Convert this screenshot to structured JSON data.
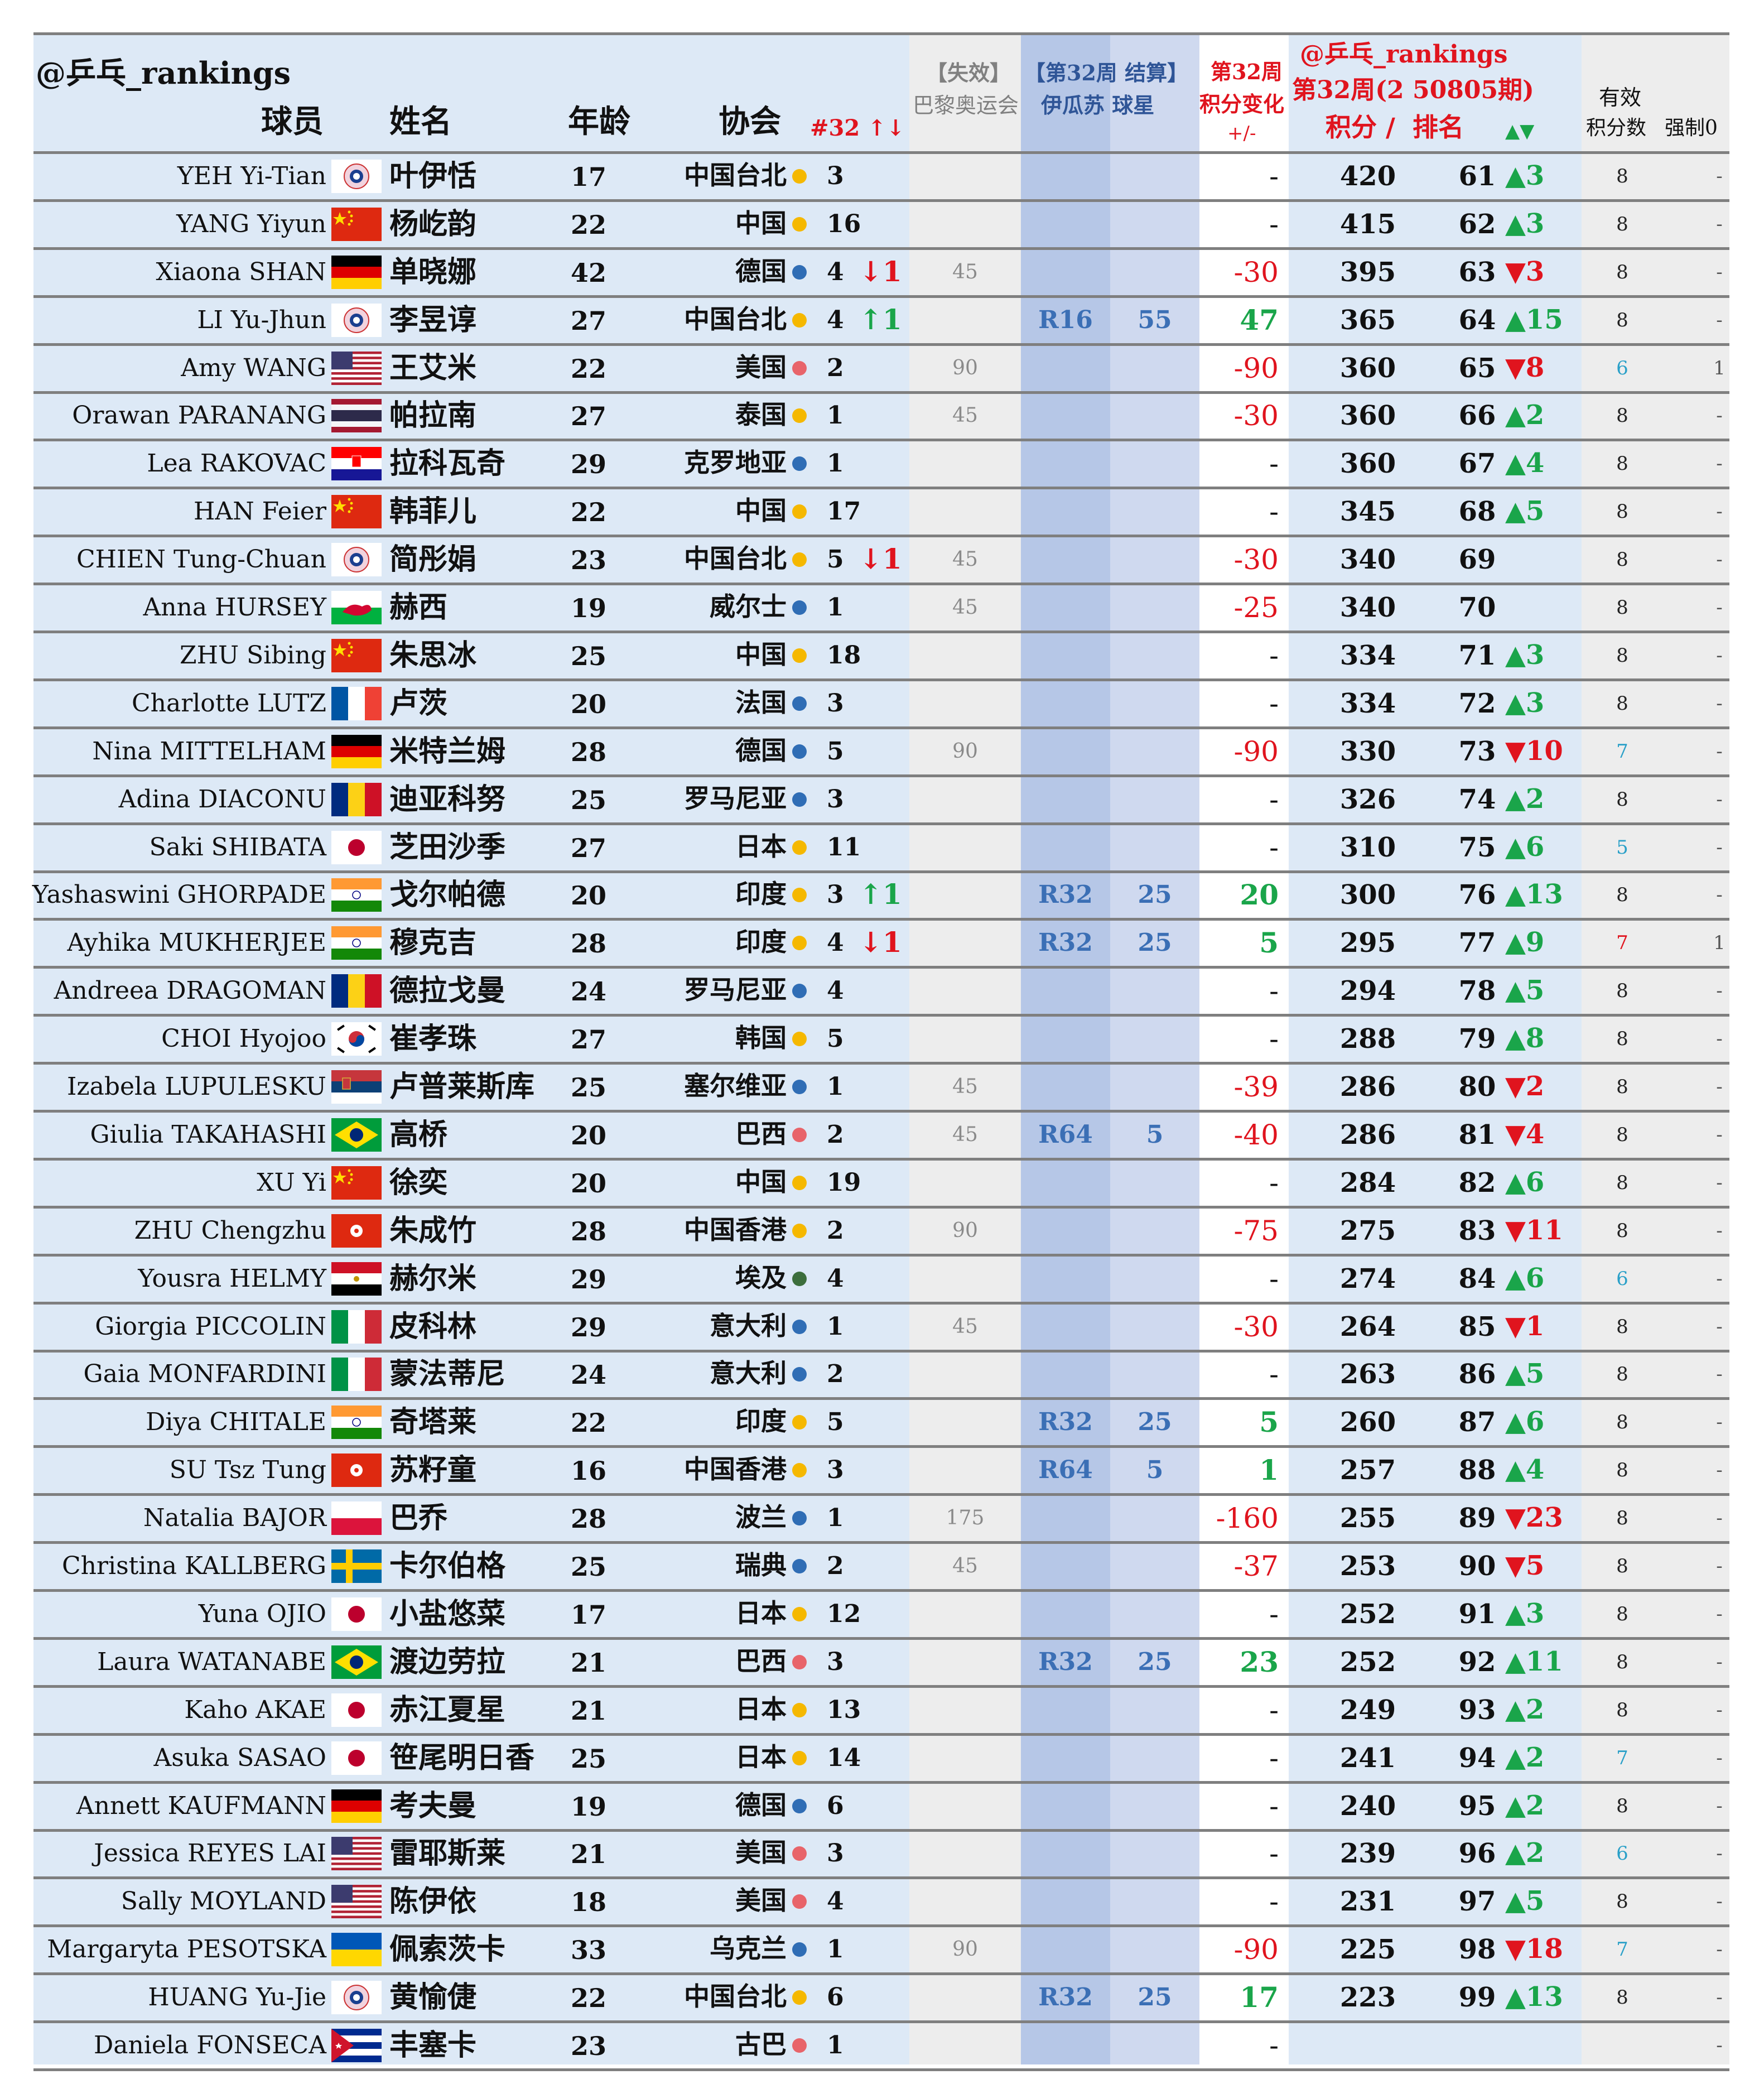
{
  "header": {
    "handle": "@乒乓_rankings",
    "col_player": "球员",
    "col_name": "姓名",
    "col_age": "年龄",
    "col_assoc": "协会",
    "col_week_change": "#32 ↑↓",
    "col_expired_line1": "【失效】",
    "col_expired_line2": "巴黎奥运会",
    "col_settle_line1": "【第32周 结算】",
    "col_settle_line2": "伊瓜苏 球星",
    "col_points_change_line1": "第32周",
    "col_points_change_line2": "积分变化",
    "col_points_change_line3": "+/-",
    "col_rank_line1": "@乒乓_rankings",
    "col_rank_line2": "第32周(2 50805期)",
    "col_points": "积分 /",
    "col_rank": "排名",
    "col_rank_arrows": "▲▼",
    "col_valid_line1": "有效",
    "col_valid_line2": "积分数",
    "col_forced": "强制0"
  },
  "colors": {
    "asia_dot": "#f5b800",
    "europe_dot": "#2f6db5",
    "america_dot": "#e8646a",
    "africa_dot": "#3c6e3c",
    "up": "#1aa54a",
    "down": "#e0141e",
    "rblue": "#3b6fb5",
    "count_blue": "#2aa0c8",
    "count_red": "#e0141e"
  },
  "players": [
    {
      "en": "YEH Yi-Tian",
      "flag": "tpe-flag",
      "cn": "叶伊恬",
      "age": "17",
      "assoc": "中国台北",
      "region": "asia",
      "num": "3",
      "wk": "",
      "wk_dir": "",
      "exp": "",
      "round": "",
      "rpts": "",
      "chg": "-",
      "chg_dir": "",
      "pts": "420",
      "rank": "61",
      "arrow": "▲3",
      "arrow_dir": "up",
      "valid": "8",
      "valid_color": "",
      "forced": "-"
    },
    {
      "en": "YANG Yiyun",
      "flag": "china-flag",
      "cn": "杨屹韵",
      "age": "22",
      "assoc": "中国",
      "region": "asia",
      "num": "16",
      "wk": "",
      "wk_dir": "",
      "exp": "",
      "round": "",
      "rpts": "",
      "chg": "-",
      "chg_dir": "",
      "pts": "415",
      "rank": "62",
      "arrow": "▲3",
      "arrow_dir": "up",
      "valid": "8",
      "valid_color": "",
      "forced": "-"
    },
    {
      "en": "Xiaona SHAN",
      "flag": "germany-flag",
      "cn": "单晓娜",
      "age": "42",
      "assoc": "德国",
      "region": "europe",
      "num": "4",
      "wk": "↓1",
      "wk_dir": "down",
      "exp": "45",
      "round": "",
      "rpts": "",
      "chg": "-30",
      "chg_dir": "down",
      "pts": "395",
      "rank": "63",
      "arrow": "▼3",
      "arrow_dir": "down",
      "valid": "8",
      "valid_color": "",
      "forced": "-"
    },
    {
      "en": "LI Yu-Jhun",
      "flag": "tpe-flag",
      "cn": "李昱谆",
      "age": "27",
      "assoc": "中国台北",
      "region": "asia",
      "num": "4",
      "wk": "↑1",
      "wk_dir": "up",
      "exp": "",
      "round": "R16",
      "rpts": "55",
      "chg": "47",
      "chg_dir": "up",
      "pts": "365",
      "rank": "64",
      "arrow": "▲15",
      "arrow_dir": "up",
      "valid": "8",
      "valid_color": "",
      "forced": "-"
    },
    {
      "en": "Amy WANG",
      "flag": "usa-flag",
      "cn": "王艾米",
      "age": "22",
      "assoc": "美国",
      "region": "america",
      "num": "2",
      "wk": "",
      "wk_dir": "",
      "exp": "90",
      "round": "",
      "rpts": "",
      "chg": "-90",
      "chg_dir": "down",
      "pts": "360",
      "rank": "65",
      "arrow": "▼8",
      "arrow_dir": "down",
      "valid": "6",
      "valid_color": "blue",
      "forced": "1"
    },
    {
      "en": "Orawan PARANANG",
      "flag": "thailand-flag",
      "cn": "帕拉南",
      "age": "27",
      "assoc": "泰国",
      "region": "asia",
      "num": "1",
      "wk": "",
      "wk_dir": "",
      "exp": "45",
      "round": "",
      "rpts": "",
      "chg": "-30",
      "chg_dir": "down",
      "pts": "360",
      "rank": "66",
      "arrow": "▲2",
      "arrow_dir": "up",
      "valid": "8",
      "valid_color": "",
      "forced": "-"
    },
    {
      "en": "Lea RAKOVAC",
      "flag": "croatia-flag",
      "cn": "拉科瓦奇",
      "age": "29",
      "assoc": "克罗地亚",
      "region": "europe",
      "num": "1",
      "wk": "",
      "wk_dir": "",
      "exp": "",
      "round": "",
      "rpts": "",
      "chg": "-",
      "chg_dir": "",
      "pts": "360",
      "rank": "67",
      "arrow": "▲4",
      "arrow_dir": "up",
      "valid": "8",
      "valid_color": "",
      "forced": "-"
    },
    {
      "en": "HAN Feier",
      "flag": "china-flag",
      "cn": "韩菲儿",
      "age": "22",
      "assoc": "中国",
      "region": "asia",
      "num": "17",
      "wk": "",
      "wk_dir": "",
      "exp": "",
      "round": "",
      "rpts": "",
      "chg": "-",
      "chg_dir": "",
      "pts": "345",
      "rank": "68",
      "arrow": "▲5",
      "arrow_dir": "up",
      "valid": "8",
      "valid_color": "",
      "forced": "-"
    },
    {
      "en": "CHIEN Tung-Chuan",
      "flag": "tpe-flag",
      "cn": "简彤娟",
      "age": "23",
      "assoc": "中国台北",
      "region": "asia",
      "num": "5",
      "wk": "↓1",
      "wk_dir": "down",
      "exp": "45",
      "round": "",
      "rpts": "",
      "chg": "-30",
      "chg_dir": "down",
      "pts": "340",
      "rank": "69",
      "arrow": "",
      "arrow_dir": "",
      "valid": "8",
      "valid_color": "",
      "forced": "-"
    },
    {
      "en": "Anna HURSEY",
      "flag": "wales-flag",
      "cn": "赫西",
      "age": "19",
      "assoc": "威尔士",
      "region": "europe",
      "num": "1",
      "wk": "",
      "wk_dir": "",
      "exp": "45",
      "round": "",
      "rpts": "",
      "chg": "-25",
      "chg_dir": "down",
      "pts": "340",
      "rank": "70",
      "arrow": "",
      "arrow_dir": "",
      "valid": "8",
      "valid_color": "",
      "forced": "-"
    },
    {
      "en": "ZHU Sibing",
      "flag": "china-flag",
      "cn": "朱思冰",
      "age": "25",
      "assoc": "中国",
      "region": "asia",
      "num": "18",
      "wk": "",
      "wk_dir": "",
      "exp": "",
      "round": "",
      "rpts": "",
      "chg": "-",
      "chg_dir": "",
      "pts": "334",
      "rank": "71",
      "arrow": "▲3",
      "arrow_dir": "up",
      "valid": "8",
      "valid_color": "",
      "forced": "-"
    },
    {
      "en": "Charlotte LUTZ",
      "flag": "france-flag",
      "cn": "卢茨",
      "age": "20",
      "assoc": "法国",
      "region": "europe",
      "num": "3",
      "wk": "",
      "wk_dir": "",
      "exp": "",
      "round": "",
      "rpts": "",
      "chg": "-",
      "chg_dir": "",
      "pts": "334",
      "rank": "72",
      "arrow": "▲3",
      "arrow_dir": "up",
      "valid": "8",
      "valid_color": "",
      "forced": "-"
    },
    {
      "en": "Nina MITTELHAM",
      "flag": "germany-flag",
      "cn": "米特兰姆",
      "age": "28",
      "assoc": "德国",
      "region": "europe",
      "num": "5",
      "wk": "",
      "wk_dir": "",
      "exp": "90",
      "round": "",
      "rpts": "",
      "chg": "-90",
      "chg_dir": "down",
      "pts": "330",
      "rank": "73",
      "arrow": "▼10",
      "arrow_dir": "down",
      "valid": "7",
      "valid_color": "blue",
      "forced": "-"
    },
    {
      "en": "Adina DIACONU",
      "flag": "romania-flag",
      "cn": "迪亚科努",
      "age": "25",
      "assoc": "罗马尼亚",
      "region": "europe",
      "num": "3",
      "wk": "",
      "wk_dir": "",
      "exp": "",
      "round": "",
      "rpts": "",
      "chg": "-",
      "chg_dir": "",
      "pts": "326",
      "rank": "74",
      "arrow": "▲2",
      "arrow_dir": "up",
      "valid": "8",
      "valid_color": "",
      "forced": "-"
    },
    {
      "en": "Saki SHIBATA",
      "flag": "japan-flag",
      "cn": "芝田沙季",
      "age": "27",
      "assoc": "日本",
      "region": "asia",
      "num": "11",
      "wk": "",
      "wk_dir": "",
      "exp": "",
      "round": "",
      "rpts": "",
      "chg": "-",
      "chg_dir": "",
      "pts": "310",
      "rank": "75",
      "arrow": "▲6",
      "arrow_dir": "up",
      "valid": "5",
      "valid_color": "blue",
      "forced": "-"
    },
    {
      "en": "Yashaswini GHORPADE",
      "flag": "india-flag",
      "cn": "戈尔帕德",
      "age": "20",
      "assoc": "印度",
      "region": "asia",
      "num": "3",
      "wk": "↑1",
      "wk_dir": "up",
      "exp": "",
      "round": "R32",
      "rpts": "25",
      "chg": "20",
      "chg_dir": "up",
      "pts": "300",
      "rank": "76",
      "arrow": "▲13",
      "arrow_dir": "up",
      "valid": "8",
      "valid_color": "",
      "forced": "-"
    },
    {
      "en": "Ayhika MUKHERJEE",
      "flag": "india-flag",
      "cn": "穆克吉",
      "age": "28",
      "assoc": "印度",
      "region": "asia",
      "num": "4",
      "wk": "↓1",
      "wk_dir": "down",
      "exp": "",
      "round": "R32",
      "rpts": "25",
      "chg": "5",
      "chg_dir": "up",
      "pts": "295",
      "rank": "77",
      "arrow": "▲9",
      "arrow_dir": "up",
      "valid": "7",
      "valid_color": "red",
      "forced": "1"
    },
    {
      "en": "Andreea DRAGOMAN",
      "flag": "romania-flag",
      "cn": "德拉戈曼",
      "age": "24",
      "assoc": "罗马尼亚",
      "region": "europe",
      "num": "4",
      "wk": "",
      "wk_dir": "",
      "exp": "",
      "round": "",
      "rpts": "",
      "chg": "-",
      "chg_dir": "",
      "pts": "294",
      "rank": "78",
      "arrow": "▲5",
      "arrow_dir": "up",
      "valid": "8",
      "valid_color": "",
      "forced": "-"
    },
    {
      "en": "CHOI Hyojoo",
      "flag": "korea-flag",
      "cn": "崔孝珠",
      "age": "27",
      "assoc": "韩国",
      "region": "asia",
      "num": "5",
      "wk": "",
      "wk_dir": "",
      "exp": "",
      "round": "",
      "rpts": "",
      "chg": "-",
      "chg_dir": "",
      "pts": "288",
      "rank": "79",
      "arrow": "▲8",
      "arrow_dir": "up",
      "valid": "8",
      "valid_color": "",
      "forced": "-"
    },
    {
      "en": "Izabela LUPULESKU",
      "flag": "serbia-flag",
      "cn": "卢普莱斯库",
      "age": "25",
      "assoc": "塞尔维亚",
      "region": "europe",
      "num": "1",
      "wk": "",
      "wk_dir": "",
      "exp": "45",
      "round": "",
      "rpts": "",
      "chg": "-39",
      "chg_dir": "down",
      "pts": "286",
      "rank": "80",
      "arrow": "▼2",
      "arrow_dir": "down",
      "valid": "8",
      "valid_color": "",
      "forced": "-"
    },
    {
      "en": "Giulia TAKAHASHI",
      "flag": "brazil-flag",
      "cn": "高桥",
      "age": "20",
      "assoc": "巴西",
      "region": "america",
      "num": "2",
      "wk": "",
      "wk_dir": "",
      "exp": "45",
      "round": "R64",
      "rpts": "5",
      "chg": "-40",
      "chg_dir": "down",
      "pts": "286",
      "rank": "81",
      "arrow": "▼4",
      "arrow_dir": "down",
      "valid": "8",
      "valid_color": "",
      "forced": "-"
    },
    {
      "en": "XU Yi",
      "flag": "china-flag",
      "cn": "徐奕",
      "age": "20",
      "assoc": "中国",
      "region": "asia",
      "num": "19",
      "wk": "",
      "wk_dir": "",
      "exp": "",
      "round": "",
      "rpts": "",
      "chg": "-",
      "chg_dir": "",
      "pts": "284",
      "rank": "82",
      "arrow": "▲6",
      "arrow_dir": "up",
      "valid": "8",
      "valid_color": "",
      "forced": "-"
    },
    {
      "en": "ZHU Chengzhu",
      "flag": "hongkong-flag",
      "cn": "朱成竹",
      "age": "28",
      "assoc": "中国香港",
      "region": "asia",
      "num": "2",
      "wk": "",
      "wk_dir": "",
      "exp": "90",
      "round": "",
      "rpts": "",
      "chg": "-75",
      "chg_dir": "down",
      "pts": "275",
      "rank": "83",
      "arrow": "▼11",
      "arrow_dir": "down",
      "valid": "8",
      "valid_color": "",
      "forced": "-"
    },
    {
      "en": "Yousra HELMY",
      "flag": "egypt-flag",
      "cn": "赫尔米",
      "age": "29",
      "assoc": "埃及",
      "region": "africa",
      "num": "4",
      "wk": "",
      "wk_dir": "",
      "exp": "",
      "round": "",
      "rpts": "",
      "chg": "-",
      "chg_dir": "",
      "pts": "274",
      "rank": "84",
      "arrow": "▲6",
      "arrow_dir": "up",
      "valid": "6",
      "valid_color": "blue",
      "forced": "-"
    },
    {
      "en": "Giorgia PICCOLIN",
      "flag": "italy-flag",
      "cn": "皮科林",
      "age": "29",
      "assoc": "意大利",
      "region": "europe",
      "num": "1",
      "wk": "",
      "wk_dir": "",
      "exp": "45",
      "round": "",
      "rpts": "",
      "chg": "-30",
      "chg_dir": "down",
      "pts": "264",
      "rank": "85",
      "arrow": "▼1",
      "arrow_dir": "down",
      "valid": "8",
      "valid_color": "",
      "forced": "-"
    },
    {
      "en": "Gaia MONFARDINI",
      "flag": "italy-flag",
      "cn": "蒙法蒂尼",
      "age": "24",
      "assoc": "意大利",
      "region": "europe",
      "num": "2",
      "wk": "",
      "wk_dir": "",
      "exp": "",
      "round": "",
      "rpts": "",
      "chg": "-",
      "chg_dir": "",
      "pts": "263",
      "rank": "86",
      "arrow": "▲5",
      "arrow_dir": "up",
      "valid": "8",
      "valid_color": "",
      "forced": "-"
    },
    {
      "en": "Diya CHITALE",
      "flag": "india-flag",
      "cn": "奇塔莱",
      "age": "22",
      "assoc": "印度",
      "region": "asia",
      "num": "5",
      "wk": "",
      "wk_dir": "",
      "exp": "",
      "round": "R32",
      "rpts": "25",
      "chg": "5",
      "chg_dir": "up",
      "pts": "260",
      "rank": "87",
      "arrow": "▲6",
      "arrow_dir": "up",
      "valid": "8",
      "valid_color": "",
      "forced": "-"
    },
    {
      "en": "SU Tsz Tung",
      "flag": "hongkong-flag",
      "cn": "苏籽童",
      "age": "16",
      "assoc": "中国香港",
      "region": "asia",
      "num": "3",
      "wk": "",
      "wk_dir": "",
      "exp": "",
      "round": "R64",
      "rpts": "5",
      "chg": "1",
      "chg_dir": "up",
      "pts": "257",
      "rank": "88",
      "arrow": "▲4",
      "arrow_dir": "up",
      "valid": "8",
      "valid_color": "",
      "forced": "-"
    },
    {
      "en": "Natalia BAJOR",
      "flag": "poland-flag",
      "cn": "巴乔",
      "age": "28",
      "assoc": "波兰",
      "region": "europe",
      "num": "1",
      "wk": "",
      "wk_dir": "",
      "exp": "175",
      "round": "",
      "rpts": "",
      "chg": "-160",
      "chg_dir": "down",
      "pts": "255",
      "rank": "89",
      "arrow": "▼23",
      "arrow_dir": "down",
      "valid": "8",
      "valid_color": "",
      "forced": "-"
    },
    {
      "en": "Christina KALLBERG",
      "flag": "sweden-flag",
      "cn": "卡尔伯格",
      "age": "25",
      "assoc": "瑞典",
      "region": "europe",
      "num": "2",
      "wk": "",
      "wk_dir": "",
      "exp": "45",
      "round": "",
      "rpts": "",
      "chg": "-37",
      "chg_dir": "down",
      "pts": "253",
      "rank": "90",
      "arrow": "▼5",
      "arrow_dir": "down",
      "valid": "8",
      "valid_color": "",
      "forced": "-"
    },
    {
      "en": "Yuna OJIO",
      "flag": "japan-flag",
      "cn": "小盐悠菜",
      "age": "17",
      "assoc": "日本",
      "region": "asia",
      "num": "12",
      "wk": "",
      "wk_dir": "",
      "exp": "",
      "round": "",
      "rpts": "",
      "chg": "-",
      "chg_dir": "",
      "pts": "252",
      "rank": "91",
      "arrow": "▲3",
      "arrow_dir": "up",
      "valid": "8",
      "valid_color": "",
      "forced": "-"
    },
    {
      "en": "Laura WATANABE",
      "flag": "brazil-flag",
      "cn": "渡边劳拉",
      "age": "21",
      "assoc": "巴西",
      "region": "america",
      "num": "3",
      "wk": "",
      "wk_dir": "",
      "exp": "",
      "round": "R32",
      "rpts": "25",
      "chg": "23",
      "chg_dir": "up",
      "pts": "252",
      "rank": "92",
      "arrow": "▲11",
      "arrow_dir": "up",
      "valid": "8",
      "valid_color": "",
      "forced": "-"
    },
    {
      "en": "Kaho AKAE",
      "flag": "japan-flag",
      "cn": "赤江夏星",
      "age": "21",
      "assoc": "日本",
      "region": "asia",
      "num": "13",
      "wk": "",
      "wk_dir": "",
      "exp": "",
      "round": "",
      "rpts": "",
      "chg": "-",
      "chg_dir": "",
      "pts": "249",
      "rank": "93",
      "arrow": "▲2",
      "arrow_dir": "up",
      "valid": "8",
      "valid_color": "",
      "forced": "-"
    },
    {
      "en": "Asuka SASAO",
      "flag": "japan-flag",
      "cn": "笹尾明日香",
      "age": "25",
      "assoc": "日本",
      "region": "asia",
      "num": "14",
      "wk": "",
      "wk_dir": "",
      "exp": "",
      "round": "",
      "rpts": "",
      "chg": "-",
      "chg_dir": "",
      "pts": "241",
      "rank": "94",
      "arrow": "▲2",
      "arrow_dir": "up",
      "valid": "7",
      "valid_color": "blue",
      "forced": "-"
    },
    {
      "en": "Annett KAUFMANN",
      "flag": "germany-flag",
      "cn": "考夫曼",
      "age": "19",
      "assoc": "德国",
      "region": "europe",
      "num": "6",
      "wk": "",
      "wk_dir": "",
      "exp": "",
      "round": "",
      "rpts": "",
      "chg": "-",
      "chg_dir": "",
      "pts": "240",
      "rank": "95",
      "arrow": "▲2",
      "arrow_dir": "up",
      "valid": "8",
      "valid_color": "",
      "forced": "-"
    },
    {
      "en": "Jessica REYES LAI",
      "flag": "usa-flag",
      "cn": "雷耶斯莱",
      "age": "21",
      "assoc": "美国",
      "region": "america",
      "num": "3",
      "wk": "",
      "wk_dir": "",
      "exp": "",
      "round": "",
      "rpts": "",
      "chg": "-",
      "chg_dir": "",
      "pts": "239",
      "rank": "96",
      "arrow": "▲2",
      "arrow_dir": "up",
      "valid": "6",
      "valid_color": "blue",
      "forced": "-"
    },
    {
      "en": "Sally MOYLAND",
      "flag": "usa-flag",
      "cn": "陈伊依",
      "age": "18",
      "assoc": "美国",
      "region": "america",
      "num": "4",
      "wk": "",
      "wk_dir": "",
      "exp": "",
      "round": "",
      "rpts": "",
      "chg": "-",
      "chg_dir": "",
      "pts": "231",
      "rank": "97",
      "arrow": "▲5",
      "arrow_dir": "up",
      "valid": "8",
      "valid_color": "",
      "forced": "-"
    },
    {
      "en": "Margaryta PESOTSKA",
      "flag": "ukraine-flag",
      "cn": "佩索茨卡",
      "age": "33",
      "assoc": "乌克兰",
      "region": "europe",
      "num": "1",
      "wk": "",
      "wk_dir": "",
      "exp": "90",
      "round": "",
      "rpts": "",
      "chg": "-90",
      "chg_dir": "down",
      "pts": "225",
      "rank": "98",
      "arrow": "▼18",
      "arrow_dir": "down",
      "valid": "7",
      "valid_color": "blue",
      "forced": "-"
    },
    {
      "en": "HUANG Yu-Jie",
      "flag": "tpe-flag",
      "cn": "黄愉倢",
      "age": "22",
      "assoc": "中国台北",
      "region": "asia",
      "num": "6",
      "wk": "",
      "wk_dir": "",
      "exp": "",
      "round": "R32",
      "rpts": "25",
      "chg": "17",
      "chg_dir": "up",
      "pts": "223",
      "rank": "99",
      "arrow": "▲13",
      "arrow_dir": "up",
      "valid": "8",
      "valid_color": "",
      "forced": "-"
    },
    {
      "en": "Daniela FONSECA",
      "flag": "cuba-flag",
      "cn": "丰塞卡",
      "age": "23",
      "assoc": "古巴",
      "region": "america",
      "num": "1",
      "wk": "",
      "wk_dir": "",
      "exp": "",
      "round": "",
      "rpts": "",
      "chg": "-",
      "chg_dir": "",
      "pts": "",
      "rank": "",
      "arrow": "",
      "arrow_dir": "",
      "valid": "",
      "valid_color": "",
      "forced": "-"
    }
  ]
}
